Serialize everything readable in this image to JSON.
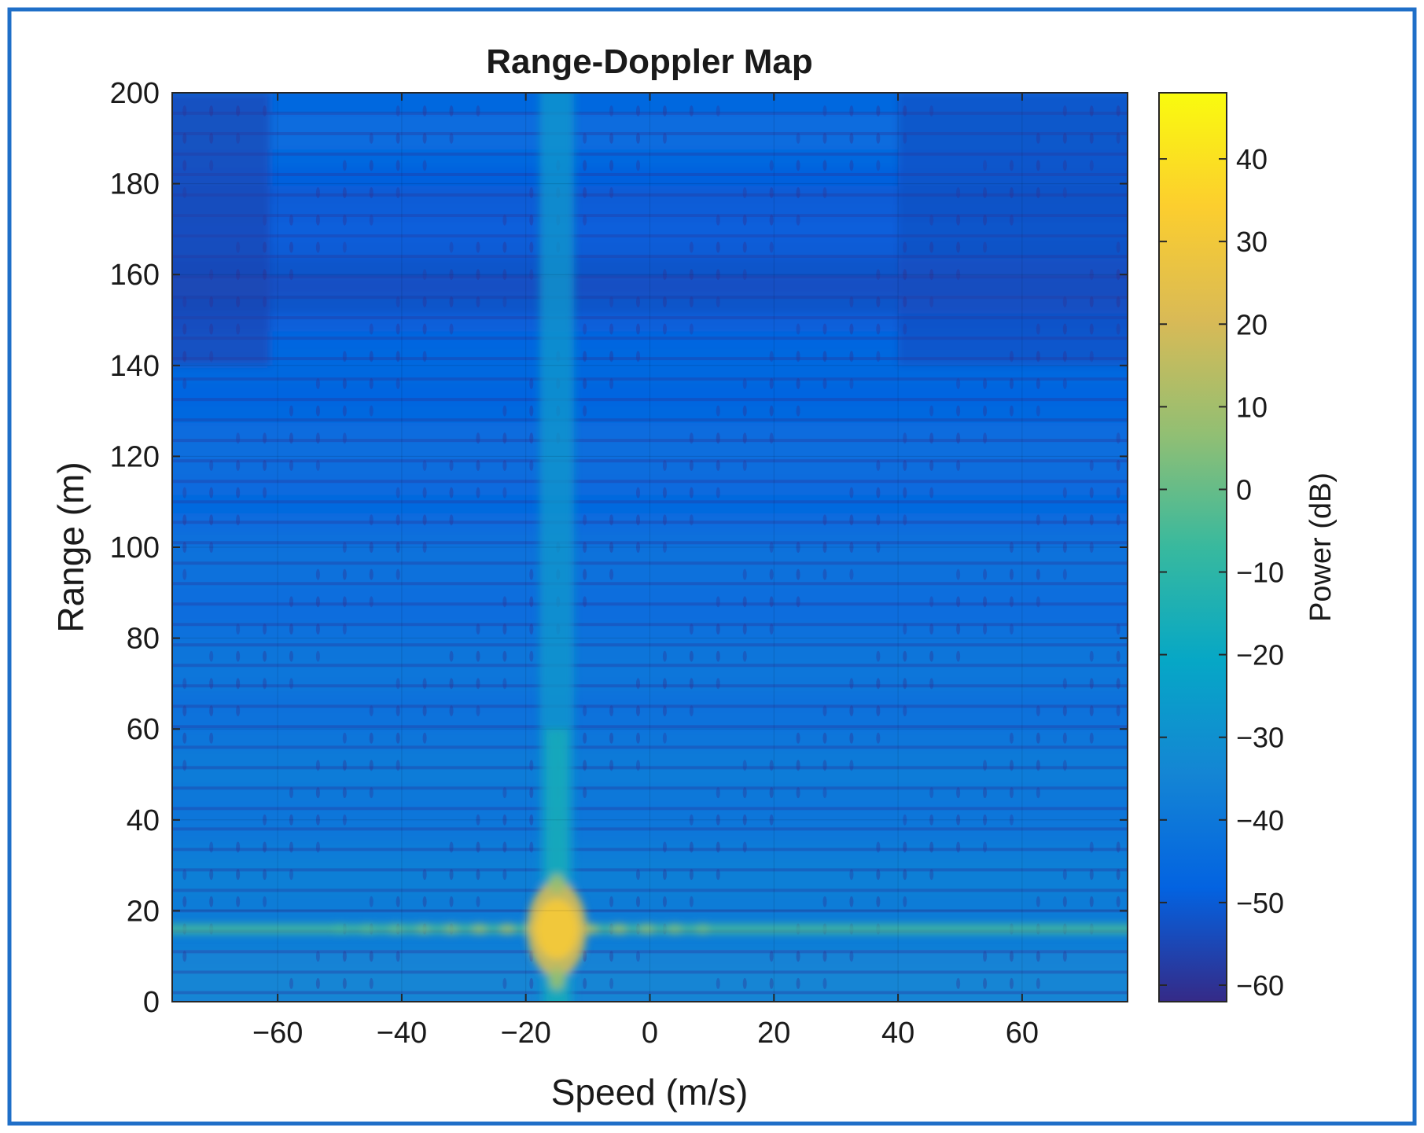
{
  "chart_data": {
    "type": "heatmap",
    "title": "Range-Doppler Map",
    "xlabel": "Speed (m/s)",
    "ylabel": "Range (m)",
    "xlim": [
      -77,
      77
    ],
    "ylim": [
      0,
      200
    ],
    "x_ticks": [
      -60,
      -40,
      -20,
      0,
      20,
      40,
      60
    ],
    "x_tick_labels": [
      "−60",
      "−40",
      "−20",
      "0",
      "20",
      "40",
      "60"
    ],
    "y_ticks": [
      0,
      20,
      40,
      60,
      80,
      100,
      120,
      140,
      160,
      180,
      200
    ],
    "y_tick_labels": [
      "0",
      "20",
      "40",
      "60",
      "80",
      "100",
      "120",
      "140",
      "160",
      "180",
      "200"
    ],
    "colorbar": {
      "label": "Power (dB)",
      "range": [
        -62,
        48
      ],
      "ticks": [
        -60,
        -50,
        -40,
        -30,
        -20,
        -10,
        0,
        10,
        20,
        30,
        40
      ],
      "tick_labels": [
        "−60",
        "−50",
        "−40",
        "−30",
        "−20",
        "−10",
        "0",
        "10",
        "20",
        "30",
        "40"
      ],
      "colormap": "parula"
    },
    "features": {
      "peak": {
        "speed": -15,
        "range": 16,
        "power_db": 30
      },
      "range_stripe": {
        "range": 16,
        "power_db": -5
      },
      "doppler_stripe": {
        "speed": -15,
        "power_db": -20
      },
      "background_db": {
        "near": -35,
        "far": -50
      }
    },
    "grid": true
  },
  "colors": {
    "frame_border": "#1f6fc8",
    "colormap_stops": [
      "#352a87",
      "#0363e1",
      "#1485d4",
      "#06a7c6",
      "#38b99e",
      "#92bf73",
      "#d9ba56",
      "#fcce2e",
      "#f9fb0e"
    ]
  }
}
